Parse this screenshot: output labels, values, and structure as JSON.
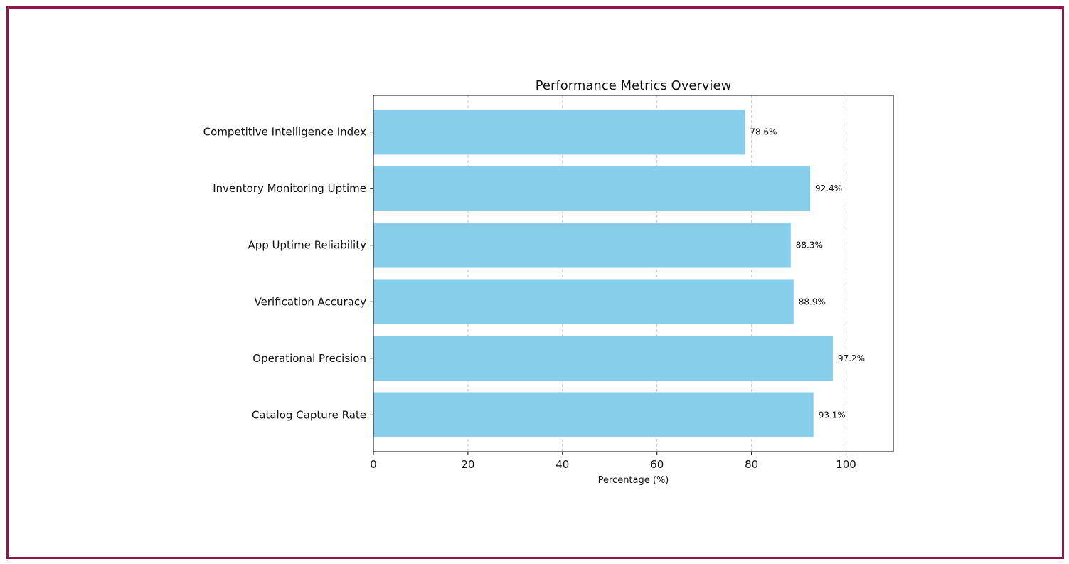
{
  "chart_data": {
    "type": "bar",
    "orientation": "horizontal",
    "title": "Performance Metrics Overview",
    "xlabel": "Percentage (%)",
    "ylabel": "",
    "xlim": [
      0,
      110
    ],
    "xticks": [
      0,
      20,
      40,
      60,
      80,
      100
    ],
    "grid": "x-dashed",
    "categories": [
      "Competitive Intelligence Index",
      "Inventory Monitoring Uptime",
      "App Uptime Reliability",
      "Verification Accuracy",
      "Operational Precision",
      "Catalog Capture Rate"
    ],
    "values": [
      78.6,
      92.4,
      88.3,
      88.9,
      97.2,
      93.1
    ],
    "data_labels": [
      "78.6%",
      "92.4%",
      "88.3%",
      "88.9%",
      "97.2%",
      "93.1%"
    ],
    "bar_color": "#87ceeb",
    "border_color": "#8b1a4a"
  }
}
